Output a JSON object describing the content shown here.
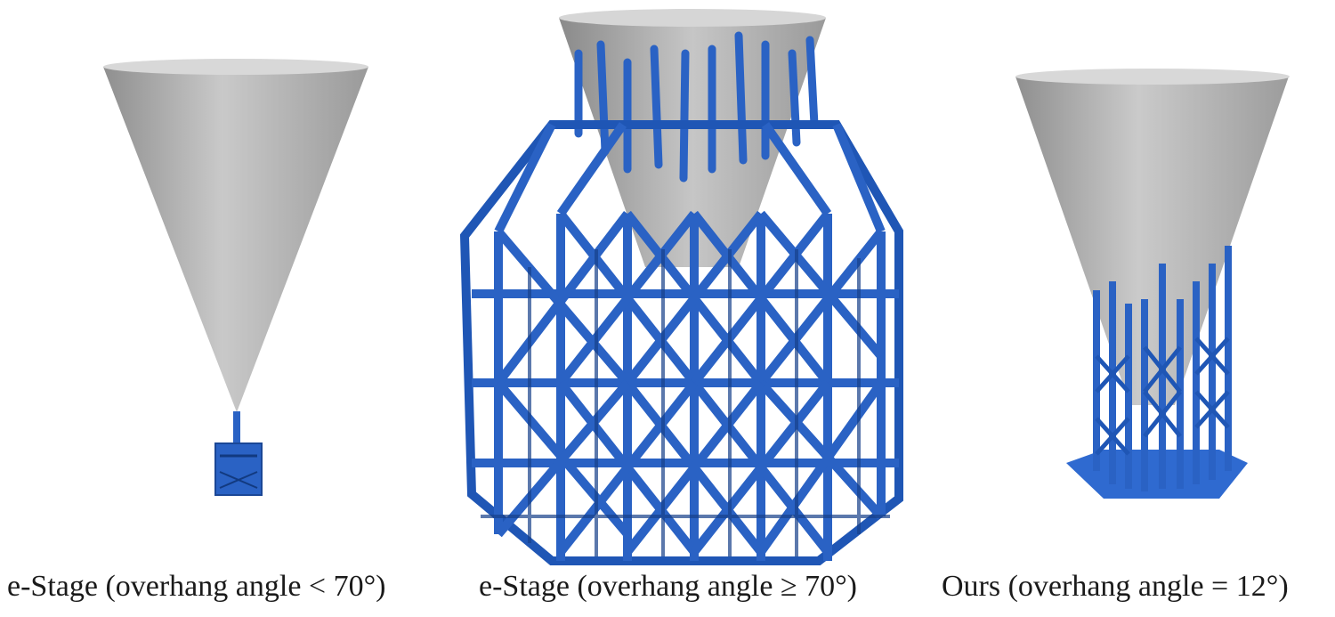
{
  "colors": {
    "cone_light": "#c9c9c9",
    "cone_dark": "#8f8f8f",
    "support_blue": "#2a62c4",
    "support_dark": "#1b4796",
    "background": "#ffffff"
  },
  "panels": [
    {
      "caption": "e-Stage (overhang angle < 70°)"
    },
    {
      "caption": "e-Stage (overhang angle ≥ 70°)"
    },
    {
      "caption": "Ours (overhang angle = 12°)"
    }
  ]
}
